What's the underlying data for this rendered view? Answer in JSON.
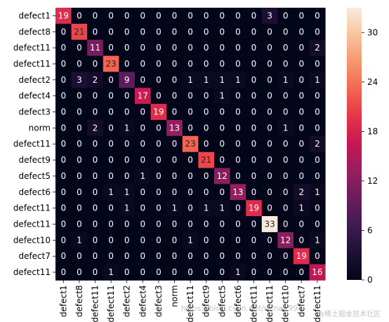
{
  "chart_data": {
    "type": "heatmap",
    "title": "",
    "xlabel": "",
    "ylabel": "",
    "row_labels": [
      "defect1",
      "defect8",
      "defect11",
      "defect11",
      "defect2",
      "defect4",
      "defect3",
      "norm",
      "defect11",
      "defect9",
      "defect5",
      "defect6",
      "defect11",
      "defect11",
      "defect10",
      "defect7",
      "defect11"
    ],
    "col_labels": [
      "defect1",
      "defect8",
      "defect11",
      "defect11",
      "defect2",
      "defect4",
      "defect3",
      "norm",
      "defect11",
      "defect9",
      "defect5",
      "defect6",
      "defect11",
      "defect11",
      "defect10",
      "defect7",
      "defect11"
    ],
    "values": [
      [
        19,
        0,
        0,
        0,
        0,
        0,
        0,
        0,
        0,
        0,
        0,
        0,
        0,
        3,
        0,
        0,
        0
      ],
      [
        0,
        21,
        0,
        0,
        0,
        0,
        0,
        0,
        0,
        0,
        0,
        0,
        0,
        0,
        0,
        0,
        0
      ],
      [
        0,
        0,
        11,
        0,
        0,
        0,
        0,
        0,
        0,
        0,
        0,
        0,
        0,
        0,
        0,
        0,
        2
      ],
      [
        0,
        0,
        0,
        23,
        0,
        0,
        0,
        0,
        0,
        0,
        0,
        0,
        0,
        0,
        0,
        0,
        0
      ],
      [
        0,
        3,
        2,
        0,
        9,
        0,
        0,
        0,
        1,
        1,
        1,
        1,
        0,
        0,
        1,
        0,
        1
      ],
      [
        0,
        0,
        0,
        0,
        0,
        17,
        0,
        0,
        0,
        0,
        1,
        0,
        0,
        0,
        0,
        0,
        0
      ],
      [
        0,
        0,
        0,
        0,
        0,
        0,
        19,
        0,
        0,
        0,
        0,
        0,
        0,
        0,
        0,
        0,
        0
      ],
      [
        0,
        0,
        2,
        0,
        1,
        0,
        0,
        13,
        0,
        0,
        0,
        0,
        0,
        0,
        1,
        0,
        0
      ],
      [
        0,
        0,
        0,
        0,
        0,
        0,
        0,
        0,
        23,
        0,
        0,
        0,
        0,
        0,
        0,
        0,
        2
      ],
      [
        0,
        0,
        0,
        0,
        0,
        0,
        0,
        0,
        0,
        21,
        0,
        0,
        0,
        0,
        0,
        0,
        0
      ],
      [
        0,
        0,
        0,
        0,
        0,
        1,
        0,
        0,
        0,
        0,
        12,
        0,
        0,
        0,
        0,
        0,
        0
      ],
      [
        0,
        0,
        0,
        1,
        1,
        0,
        0,
        0,
        0,
        0,
        0,
        13,
        0,
        0,
        0,
        2,
        1
      ],
      [
        0,
        0,
        0,
        0,
        1,
        0,
        0,
        1,
        0,
        1,
        1,
        0,
        19,
        0,
        0,
        1,
        0
      ],
      [
        0,
        0,
        0,
        0,
        0,
        0,
        0,
        0,
        0,
        0,
        0,
        0,
        0,
        33,
        0,
        0,
        0
      ],
      [
        0,
        1,
        0,
        0,
        0,
        0,
        0,
        0,
        1,
        0,
        0,
        0,
        0,
        0,
        12,
        0,
        1
      ],
      [
        0,
        0,
        0,
        0,
        0,
        0,
        0,
        0,
        0,
        0,
        0,
        0,
        0,
        0,
        0,
        19,
        0
      ],
      [
        0,
        0,
        0,
        1,
        0,
        0,
        0,
        0,
        0,
        0,
        0,
        1,
        0,
        0,
        0,
        0,
        16
      ]
    ],
    "colorbar": {
      "min": 0,
      "max": 33,
      "ticks": [
        0,
        6,
        12,
        18,
        24,
        30
      ],
      "colormap": "rocket"
    }
  },
  "watermark": {
    "text": "https://blog.csdn.net/nima1994",
    "logo_text": "@稀土掘金技术社区"
  }
}
